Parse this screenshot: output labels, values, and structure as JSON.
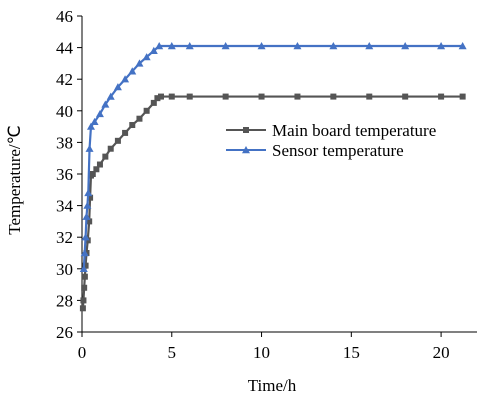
{
  "chart_data": {
    "type": "line",
    "xlabel": "Time/h",
    "ylabel": "Temperature/℃",
    "xlim": [
      0,
      22
    ],
    "ylim": [
      26,
      46
    ],
    "xticks": [
      0,
      5,
      10,
      15,
      20
    ],
    "yticks": [
      26,
      28,
      30,
      32,
      34,
      36,
      38,
      40,
      42,
      44,
      46
    ],
    "grid": false,
    "legend_position": "right-middle",
    "series": [
      {
        "name": "Main board temperature",
        "color": "#555555",
        "marker": "square",
        "points": [
          [
            0.05,
            27.5
          ],
          [
            0.08,
            28.0
          ],
          [
            0.12,
            28.8
          ],
          [
            0.16,
            29.5
          ],
          [
            0.2,
            30.2
          ],
          [
            0.25,
            31.0
          ],
          [
            0.32,
            31.8
          ],
          [
            0.4,
            33.0
          ],
          [
            0.45,
            34.5
          ],
          [
            0.5,
            35.9
          ],
          [
            0.6,
            36.0
          ],
          [
            0.8,
            36.3
          ],
          [
            1.0,
            36.6
          ],
          [
            1.3,
            37.1
          ],
          [
            1.6,
            37.6
          ],
          [
            2.0,
            38.1
          ],
          [
            2.4,
            38.6
          ],
          [
            2.8,
            39.1
          ],
          [
            3.2,
            39.5
          ],
          [
            3.6,
            40.0
          ],
          [
            4.0,
            40.5
          ],
          [
            4.2,
            40.8
          ],
          [
            4.4,
            40.9
          ],
          [
            5.0,
            40.9
          ],
          [
            6.0,
            40.9
          ],
          [
            8.0,
            40.9
          ],
          [
            10.0,
            40.9
          ],
          [
            12.0,
            40.9
          ],
          [
            14.0,
            40.9
          ],
          [
            16.0,
            40.9
          ],
          [
            18.0,
            40.9
          ],
          [
            20.0,
            40.9
          ],
          [
            21.2,
            40.9
          ]
        ]
      },
      {
        "name": "Sensor temperature",
        "color": "#4472C4",
        "marker": "triangle",
        "points": [
          [
            0.1,
            30.0
          ],
          [
            0.15,
            31.0
          ],
          [
            0.2,
            32.0
          ],
          [
            0.25,
            33.3
          ],
          [
            0.3,
            34.0
          ],
          [
            0.35,
            34.8
          ],
          [
            0.42,
            37.6
          ],
          [
            0.5,
            39.0
          ],
          [
            0.7,
            39.3
          ],
          [
            1.0,
            39.8
          ],
          [
            1.3,
            40.4
          ],
          [
            1.6,
            40.9
          ],
          [
            2.0,
            41.5
          ],
          [
            2.4,
            42.0
          ],
          [
            2.8,
            42.5
          ],
          [
            3.2,
            43.0
          ],
          [
            3.6,
            43.4
          ],
          [
            4.0,
            43.8
          ],
          [
            4.3,
            44.1
          ],
          [
            5.0,
            44.1
          ],
          [
            6.0,
            44.1
          ],
          [
            8.0,
            44.1
          ],
          [
            10.0,
            44.1
          ],
          [
            12.0,
            44.1
          ],
          [
            14.0,
            44.1
          ],
          [
            16.0,
            44.1
          ],
          [
            18.0,
            44.1
          ],
          [
            20.0,
            44.1
          ],
          [
            21.2,
            44.1
          ]
        ]
      }
    ]
  }
}
